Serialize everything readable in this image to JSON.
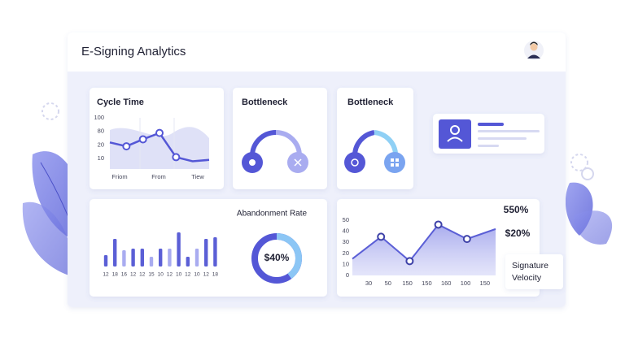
{
  "header": {
    "title": "E-Signing Analytics"
  },
  "cycle_time": {
    "title": "Cycle Time",
    "yticks": [
      100,
      80,
      20,
      10
    ],
    "xlabels": [
      "Friom",
      "From",
      "Tiew"
    ],
    "values": [
      31,
      19,
      45,
      73,
      11,
      8,
      9
    ],
    "color": "#5457d6"
  },
  "bottleneck_1": {
    "title": "Bottleneck"
  },
  "bottleneck_2": {
    "title": "Bottleneck"
  },
  "abandonment": {
    "title": "Abandonment Rate",
    "categories": [
      "12",
      "18",
      "16",
      "12",
      "12",
      "15",
      "10",
      "12",
      "10",
      "12",
      "10",
      "12",
      "18"
    ],
    "values": [
      14,
      34,
      20,
      22,
      22,
      12,
      22,
      22,
      42,
      12,
      22,
      34,
      36
    ],
    "colors": [
      "#5b5fd6",
      "#5b5fd6",
      "#a9acf0",
      "#5b5fd6",
      "#5b5fd6",
      "#a9acf0",
      "#5b5fd6",
      "#a9acf0",
      "#5b5fd6",
      "#5b5fd6",
      "#a9acf0",
      "#5b5fd6",
      "#5b5fd6"
    ],
    "donut": {
      "value": 40,
      "label": "$40%"
    }
  },
  "velocity": {
    "yticks": [
      50,
      40,
      30,
      20,
      10,
      0
    ],
    "ylim": [
      0,
      50
    ],
    "xlabels": [
      "30",
      "50",
      "150",
      "150",
      "160",
      "100",
      "150"
    ],
    "values": [
      15,
      35,
      13,
      46,
      33,
      42
    ],
    "color": "#5b5fd6",
    "stats": [
      "550%",
      "$20%"
    ],
    "caption": [
      "Signature",
      "Velocity"
    ]
  }
}
